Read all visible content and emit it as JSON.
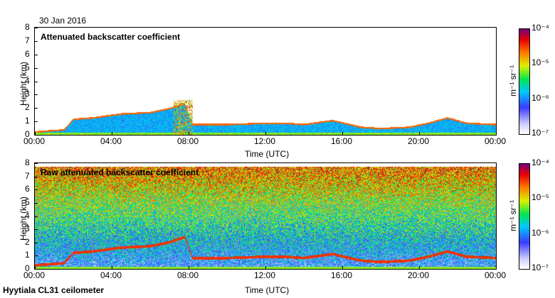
{
  "date_label": "30 Jan 2016",
  "footer": "Hyytiala CL31 ceilometer",
  "colorbar_unit": "m⁻¹ sr⁻¹",
  "chart_data": [
    {
      "type": "heatmap",
      "title": "Attenuated backscatter coefficient",
      "xlabel": "Time (UTC)",
      "ylabel": "Height (km)",
      "xticks": [
        "00:00",
        "04:00",
        "08:00",
        "12:00",
        "16:00",
        "20:00",
        "00:00"
      ],
      "yticks": [
        "0",
        "1",
        "2",
        "3",
        "4",
        "5",
        "6",
        "7",
        "8"
      ],
      "ylim": [
        0,
        8
      ],
      "xlim_hours": [
        0,
        24
      ],
      "colorbar": {
        "scale": "log",
        "ticks": [
          "10⁻⁷",
          "10⁻⁶",
          "10⁻⁵",
          "10⁻⁴"
        ],
        "range": [
          1e-07,
          0.0001
        ]
      },
      "boundary_layer_top_km": [
        {
          "t": 0,
          "h": 0.25
        },
        {
          "t": 1.5,
          "h": 0.4
        },
        {
          "t": 2,
          "h": 1.2
        },
        {
          "t": 3,
          "h": 1.3
        },
        {
          "t": 4.5,
          "h": 1.6
        },
        {
          "t": 6,
          "h": 1.7
        },
        {
          "t": 7,
          "h": 2.0
        },
        {
          "t": 7.8,
          "h": 2.4
        },
        {
          "t": 8.2,
          "h": 0.8
        },
        {
          "t": 10,
          "h": 0.8
        },
        {
          "t": 12,
          "h": 0.9
        },
        {
          "t": 13,
          "h": 0.9
        },
        {
          "t": 14,
          "h": 0.8
        },
        {
          "t": 15.5,
          "h": 1.1
        },
        {
          "t": 17,
          "h": 0.6
        },
        {
          "t": 18,
          "h": 0.5
        },
        {
          "t": 19.5,
          "h": 0.6
        },
        {
          "t": 20.5,
          "h": 0.9
        },
        {
          "t": 21.5,
          "h": 1.3
        },
        {
          "t": 22.5,
          "h": 0.9
        },
        {
          "t": 24,
          "h": 0.8
        }
      ]
    },
    {
      "type": "heatmap",
      "title": "Raw attenuated backscatter coefficient",
      "xlabel": "Time (UTC)",
      "ylabel": "Height (km)",
      "xticks": [
        "00:00",
        "04:00",
        "08:00",
        "12:00",
        "16:00",
        "20:00",
        "00:00"
      ],
      "yticks": [
        "0",
        "1",
        "2",
        "3",
        "4",
        "5",
        "6",
        "7",
        "8"
      ],
      "ylim": [
        0,
        8
      ],
      "xlim_hours": [
        0,
        24
      ],
      "colorbar": {
        "scale": "log",
        "ticks": [
          "10⁻⁷",
          "10⁻⁶",
          "10⁻⁵",
          "10⁻⁴"
        ],
        "range": [
          1e-07,
          0.0001
        ]
      }
    }
  ]
}
